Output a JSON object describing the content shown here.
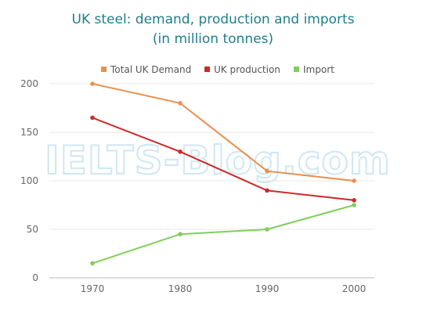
{
  "chart_data": {
    "type": "line",
    "title": "UK steel: demand, production and imports",
    "subtitle": "(in million tonnes)",
    "watermark": "IELTS-Blog.com",
    "x": [
      "1970",
      "1980",
      "1990",
      "2000"
    ],
    "series": [
      {
        "name": "Total UK Demand",
        "color": "#e8914f",
        "values": [
          200,
          180,
          110,
          100
        ]
      },
      {
        "name": "UK production",
        "color": "#cc2a2a",
        "values": [
          165,
          130,
          90,
          80
        ]
      },
      {
        "name": "Import",
        "color": "#7fcf5c",
        "values": [
          15,
          45,
          50,
          75
        ]
      }
    ],
    "yticks": [
      0,
      50,
      100,
      150,
      200
    ],
    "ylim": [
      0,
      200
    ],
    "xlabel": "",
    "ylabel": "",
    "grid": true,
    "legend_position": "top"
  }
}
